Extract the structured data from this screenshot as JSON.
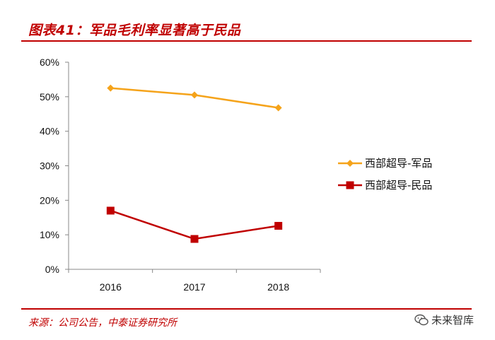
{
  "header": {
    "title": "图表41：军品毛利率显著高于民品"
  },
  "footer": {
    "source": "来源：公司公告，中泰证券研究所"
  },
  "watermark": {
    "text": "未来智库",
    "icon": "wechat-icon"
  },
  "chart_data": {
    "type": "line",
    "categories": [
      "2016",
      "2017",
      "2018"
    ],
    "series": [
      {
        "name": "西部超导-军品",
        "values": [
          52.5,
          50.5,
          46.8
        ],
        "color": "#f5a31a",
        "marker": "diamond"
      },
      {
        "name": "西部超导-民品",
        "values": [
          17.0,
          8.8,
          12.6
        ],
        "color": "#c00000",
        "marker": "square"
      }
    ],
    "y_ticks": [
      "0%",
      "10%",
      "20%",
      "30%",
      "40%",
      "50%",
      "60%"
    ],
    "ylim": [
      0,
      60
    ],
    "grid": false,
    "legend_position": "right"
  }
}
